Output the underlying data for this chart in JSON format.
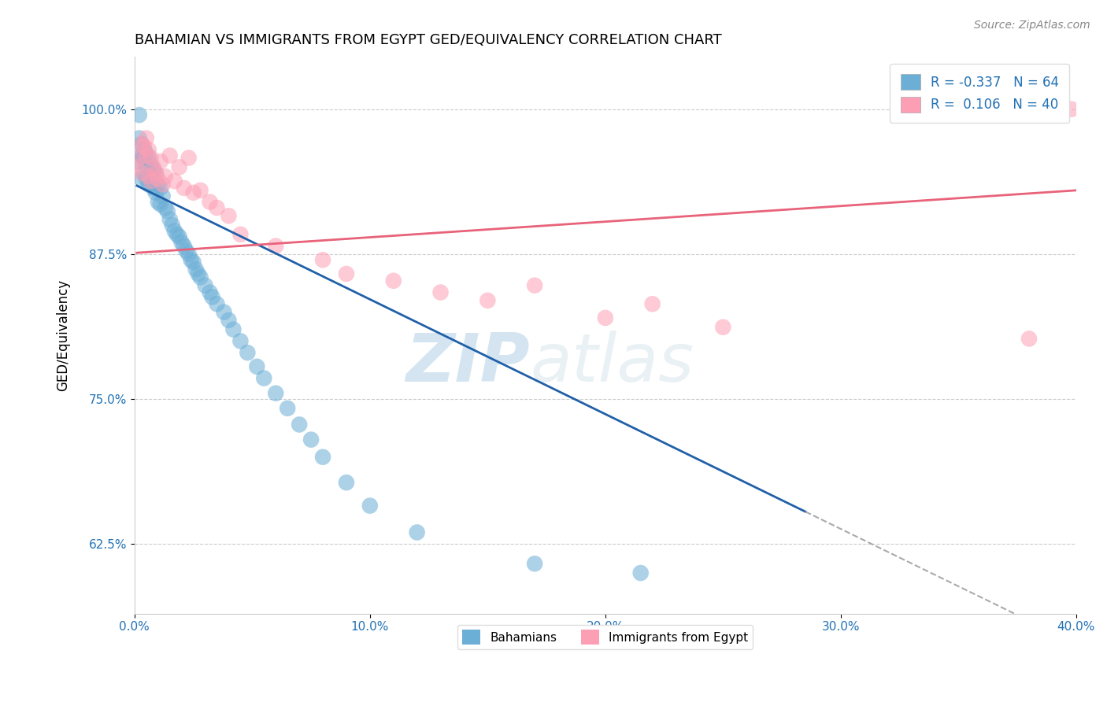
{
  "title": "BAHAMIAN VS IMMIGRANTS FROM EGYPT GED/EQUIVALENCY CORRELATION CHART",
  "source": "Source: ZipAtlas.com",
  "ylabel": "GED/Equivalency",
  "xlim": [
    0.0,
    0.4
  ],
  "ylim": [
    0.565,
    1.045
  ],
  "xticks": [
    0.0,
    0.1,
    0.2,
    0.3,
    0.4
  ],
  "xticklabels": [
    "0.0%",
    "10.0%",
    "20.0%",
    "30.0%",
    "40.0%"
  ],
  "yticks": [
    0.625,
    0.75,
    0.875,
    1.0
  ],
  "yticklabels": [
    "62.5%",
    "75.0%",
    "87.5%",
    "100.0%"
  ],
  "blue_R": -0.337,
  "blue_N": 64,
  "pink_R": 0.106,
  "pink_N": 40,
  "blue_color": "#6baed6",
  "pink_color": "#fc9fb5",
  "blue_line_color": "#2060a8",
  "pink_line_color": "#e8637a",
  "legend_label_blue": "Bahamians",
  "legend_label_pink": "Immigrants from Egypt",
  "watermark_zip": "ZIP",
  "watermark_atlas": "atlas",
  "blue_line_x0": 0.0,
  "blue_line_y0": 0.935,
  "blue_line_x1": 0.3,
  "blue_line_y1": 0.638,
  "blue_line_solid_end": 0.285,
  "blue_line_dash_end": 0.4,
  "pink_line_x0": 0.0,
  "pink_line_y0": 0.876,
  "pink_line_x1": 0.4,
  "pink_line_y1": 0.93,
  "blue_scatter_x": [
    0.001,
    0.002,
    0.002,
    0.003,
    0.003,
    0.003,
    0.004,
    0.004,
    0.004,
    0.005,
    0.005,
    0.005,
    0.006,
    0.006,
    0.006,
    0.007,
    0.007,
    0.007,
    0.008,
    0.008,
    0.009,
    0.009,
    0.01,
    0.01,
    0.011,
    0.011,
    0.012,
    0.013,
    0.014,
    0.015,
    0.016,
    0.017,
    0.018,
    0.019,
    0.02,
    0.021,
    0.022,
    0.023,
    0.024,
    0.025,
    0.026,
    0.027,
    0.028,
    0.03,
    0.032,
    0.033,
    0.035,
    0.038,
    0.04,
    0.042,
    0.045,
    0.048,
    0.052,
    0.055,
    0.06,
    0.065,
    0.07,
    0.075,
    0.08,
    0.09,
    0.1,
    0.12,
    0.17,
    0.215
  ],
  "blue_scatter_y": [
    0.955,
    0.995,
    0.975,
    0.96,
    0.94,
    0.97,
    0.965,
    0.958,
    0.945,
    0.962,
    0.952,
    0.94,
    0.958,
    0.945,
    0.935,
    0.952,
    0.942,
    0.935,
    0.948,
    0.932,
    0.945,
    0.928,
    0.935,
    0.92,
    0.932,
    0.918,
    0.925,
    0.915,
    0.912,
    0.905,
    0.9,
    0.895,
    0.892,
    0.89,
    0.885,
    0.882,
    0.878,
    0.875,
    0.87,
    0.868,
    0.862,
    0.858,
    0.855,
    0.848,
    0.842,
    0.838,
    0.832,
    0.825,
    0.818,
    0.81,
    0.8,
    0.79,
    0.778,
    0.768,
    0.755,
    0.742,
    0.728,
    0.715,
    0.7,
    0.678,
    0.658,
    0.635,
    0.608,
    0.6
  ],
  "pink_scatter_x": [
    0.001,
    0.002,
    0.003,
    0.003,
    0.004,
    0.005,
    0.005,
    0.006,
    0.006,
    0.007,
    0.007,
    0.008,
    0.009,
    0.01,
    0.011,
    0.012,
    0.013,
    0.015,
    0.017,
    0.019,
    0.021,
    0.023,
    0.025,
    0.028,
    0.032,
    0.035,
    0.04,
    0.045,
    0.06,
    0.08,
    0.09,
    0.11,
    0.13,
    0.15,
    0.17,
    0.2,
    0.22,
    0.25,
    0.38,
    0.398
  ],
  "pink_scatter_y": [
    0.95,
    0.958,
    0.97,
    0.945,
    0.968,
    0.975,
    0.96,
    0.965,
    0.942,
    0.958,
    0.938,
    0.95,
    0.945,
    0.94,
    0.955,
    0.935,
    0.942,
    0.96,
    0.938,
    0.95,
    0.932,
    0.958,
    0.928,
    0.93,
    0.92,
    0.915,
    0.908,
    0.892,
    0.882,
    0.87,
    0.858,
    0.852,
    0.842,
    0.835,
    0.848,
    0.82,
    0.832,
    0.812,
    0.802,
    1.0
  ]
}
